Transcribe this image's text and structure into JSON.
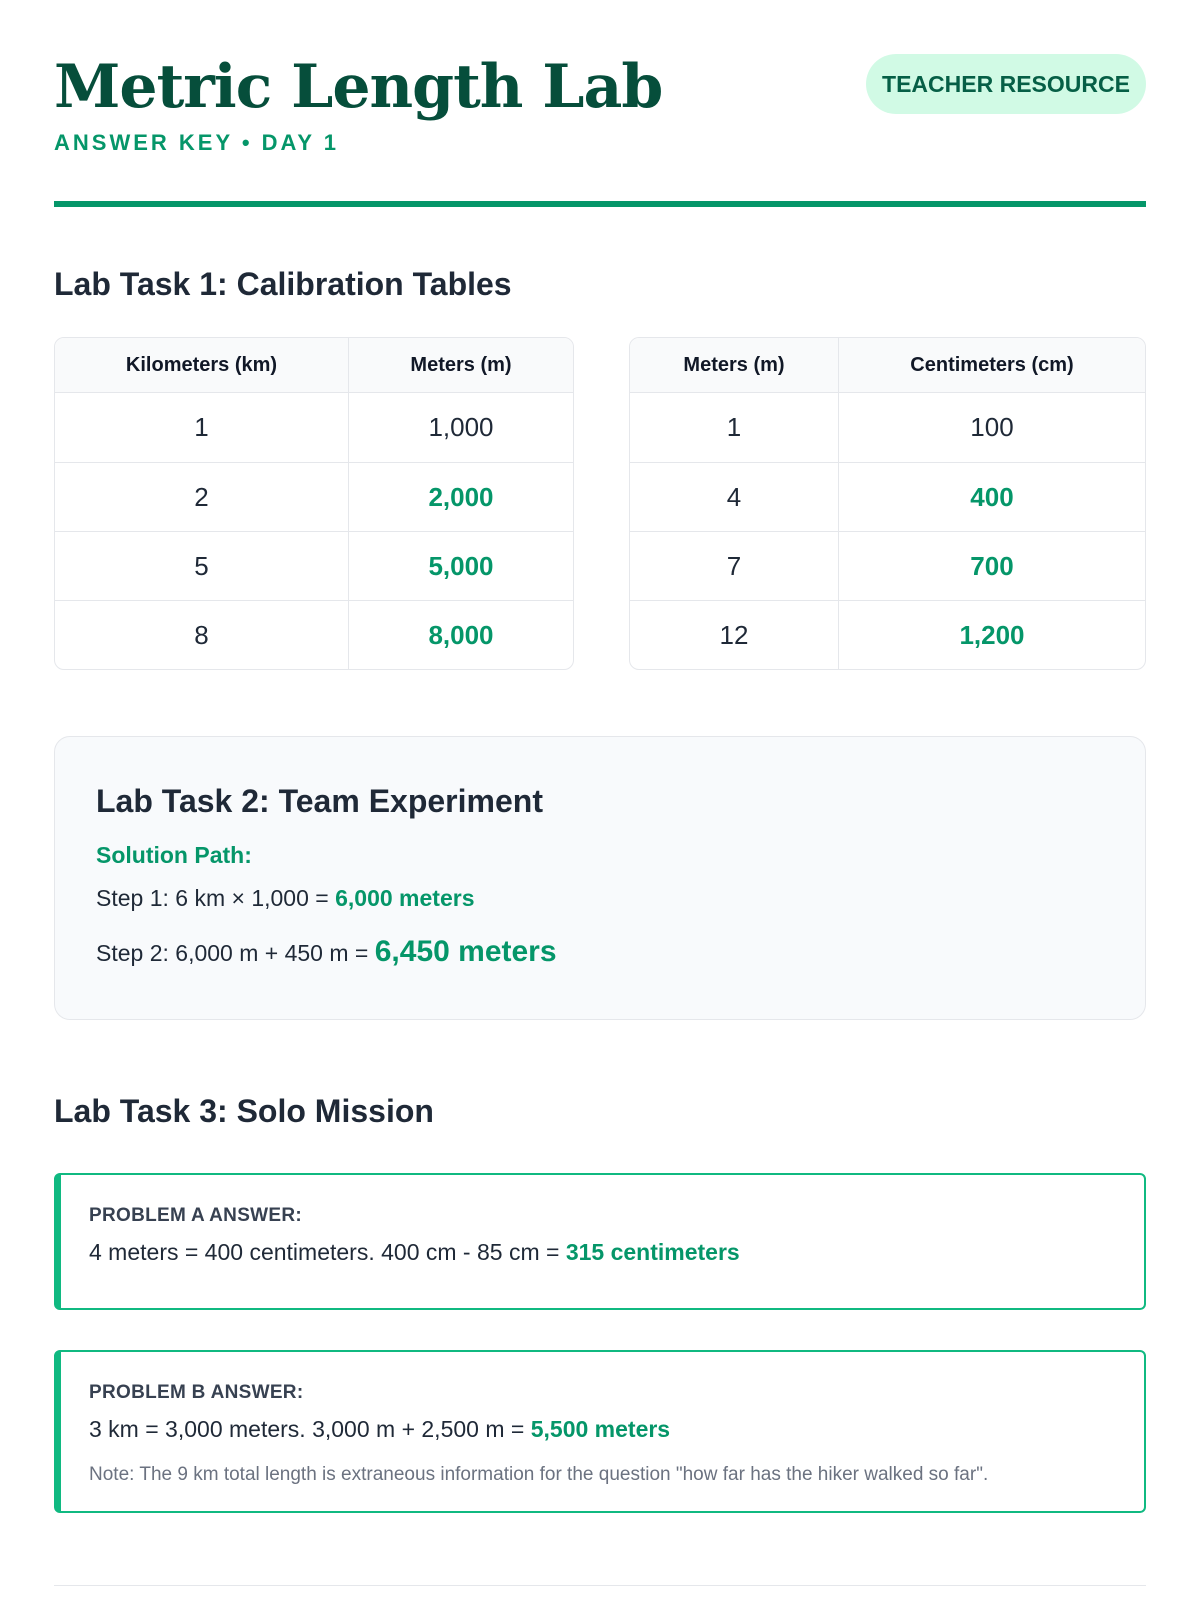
{
  "header": {
    "title": "Metric Length Lab",
    "subtitle": "ANSWER KEY • DAY 1",
    "badge": "TEACHER RESOURCE"
  },
  "task1": {
    "heading": "Lab Task 1: Calibration Tables",
    "table_left": {
      "headers": [
        "Kilometers (km)",
        "Meters (m)"
      ],
      "rows": [
        {
          "a": "1",
          "b": "1,000",
          "answer": false
        },
        {
          "a": "2",
          "b": "2,000",
          "answer": true
        },
        {
          "a": "5",
          "b": "5,000",
          "answer": true
        },
        {
          "a": "8",
          "b": "8,000",
          "answer": true
        }
      ]
    },
    "table_right": {
      "headers": [
        "Meters (m)",
        "Centimeters (cm)"
      ],
      "rows": [
        {
          "a": "1",
          "b": "100",
          "answer": false
        },
        {
          "a": "4",
          "b": "400",
          "answer": true
        },
        {
          "a": "7",
          "b": "700",
          "answer": true
        },
        {
          "a": "12",
          "b": "1,200",
          "answer": true
        }
      ]
    }
  },
  "task2": {
    "heading": "Lab Task 2: Team Experiment",
    "path_label": "Solution Path:",
    "step1_text": "Step 1: 6 km × 1,000 = ",
    "step1_result": "6,000 meters",
    "step2_text": "Step 2: 6,000 m + 450 m = ",
    "step2_result": "6,450 meters"
  },
  "task3": {
    "heading": "Lab Task 3: Solo Mission",
    "problem_a": {
      "label": "PROBLEM A ANSWER:",
      "text": "4 meters = 400 centimeters. 400 cm - 85 cm = ",
      "result": "315 centimeters"
    },
    "problem_b": {
      "label": "PROBLEM B ANSWER:",
      "text": "3 km = 3,000 meters. 3,000 m + 2,500 m = ",
      "result": "5,500 meters",
      "note": "Note: The 9 km total length is extraneous information for the question \"how far has the hiker walked so far\"."
    }
  },
  "colors": {
    "brand_dark": "#064e3b",
    "accent": "#059669",
    "badge_bg": "#d1fae5"
  }
}
